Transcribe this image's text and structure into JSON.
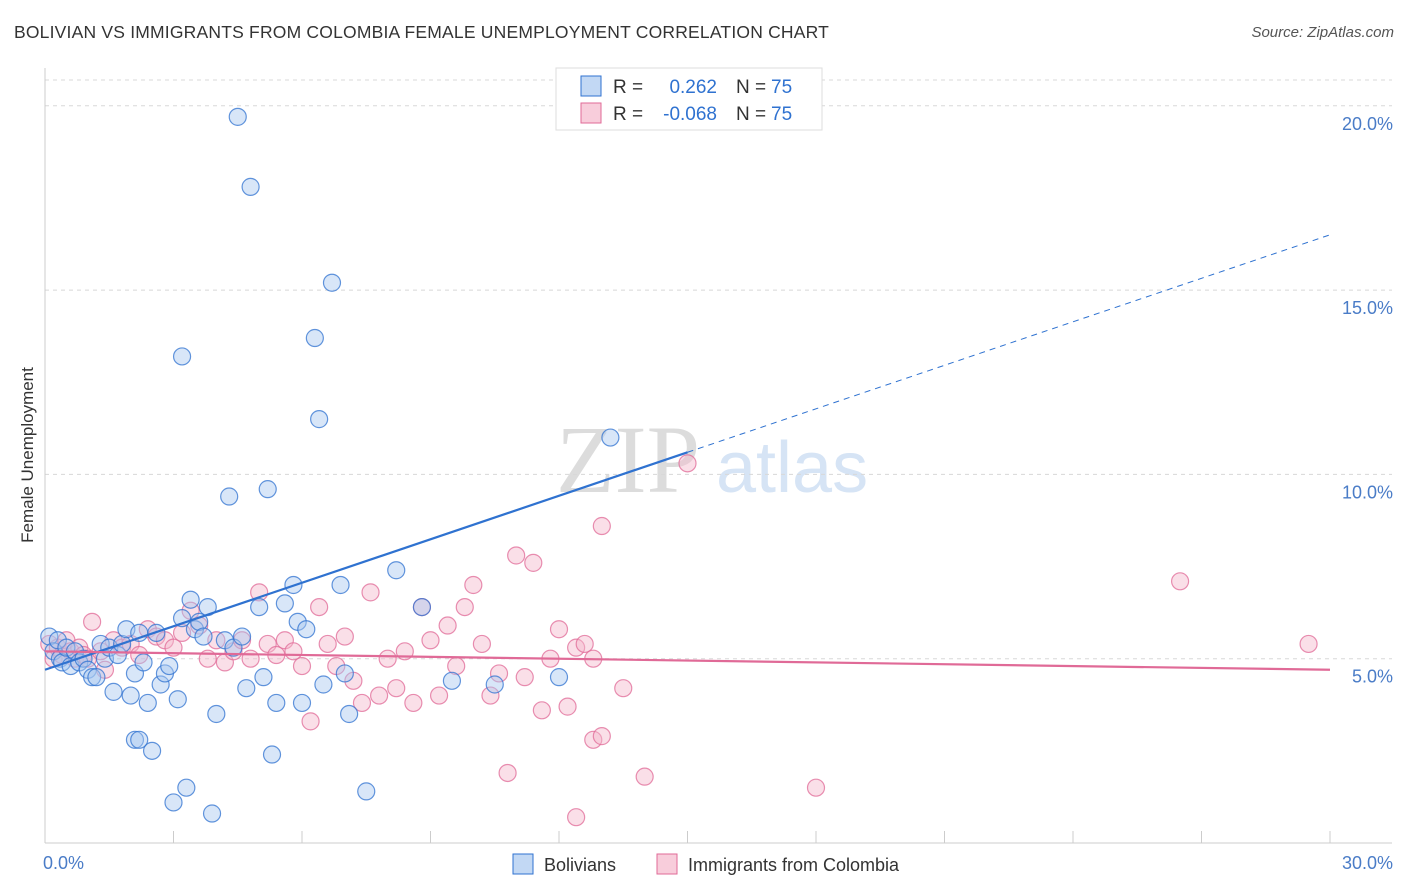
{
  "title": "BOLIVIAN VS IMMIGRANTS FROM COLOMBIA FEMALE UNEMPLOYMENT CORRELATION CHART",
  "source": "Source: ZipAtlas.com",
  "watermark": {
    "zip": "ZIP",
    "atlas": "atlas"
  },
  "colors": {
    "blue": "#2f72d0",
    "blue_fill": "#a8c8f0",
    "pink": "#e06a97",
    "pink_fill": "#f5b8cc",
    "grid": "#d8d8d8",
    "tick_label": "#4a7cc7"
  },
  "legend_top": {
    "rows": [
      {
        "r_label": "R =",
        "r_value": "0.262",
        "n_label": "N =",
        "n_value": "75",
        "color": "blue"
      },
      {
        "r_label": "R =",
        "r_value": "-0.068",
        "n_label": "N =",
        "n_value": "75",
        "color": "pink"
      }
    ]
  },
  "legend_bottom": [
    {
      "label": "Bolivians",
      "color": "blue"
    },
    {
      "label": "Immigrants from Colombia",
      "color": "pink"
    }
  ],
  "chart_data": {
    "type": "scatter",
    "ylabel": "Female Unemployment",
    "xlabel": "",
    "xlim": [
      0,
      30
    ],
    "ylim": [
      0,
      20.7
    ],
    "x_tick_labels": [
      {
        "value": 0,
        "label": "0.0%"
      },
      {
        "value": 30,
        "label": "30.0%"
      }
    ],
    "y_tick_labels": [
      {
        "value": 5,
        "label": "5.0%"
      },
      {
        "value": 10,
        "label": "10.0%"
      },
      {
        "value": 15,
        "label": "15.0%"
      },
      {
        "value": 20,
        "label": "20.0%"
      }
    ],
    "x_minor_ticks": [
      3,
      6,
      9,
      12,
      15,
      18,
      21,
      24,
      27,
      30
    ],
    "grid": true,
    "legend_position": "top-center",
    "series": [
      {
        "name": "Bolivians",
        "color": "blue",
        "trend": {
          "x0": 0,
          "y0": 4.7,
          "x1": 15,
          "y1": 10.6,
          "dash_x1": 30,
          "dash_y1": 16.5
        },
        "points": [
          [
            0.1,
            5.6
          ],
          [
            0.2,
            5.2
          ],
          [
            0.3,
            5.5
          ],
          [
            0.35,
            5.0
          ],
          [
            0.4,
            4.9
          ],
          [
            0.5,
            5.3
          ],
          [
            0.6,
            4.8
          ],
          [
            0.7,
            5.2
          ],
          [
            0.8,
            4.9
          ],
          [
            0.9,
            5.0
          ],
          [
            1.0,
            4.7
          ],
          [
            1.1,
            4.5
          ],
          [
            1.2,
            4.5
          ],
          [
            1.3,
            5.4
          ],
          [
            1.4,
            5.0
          ],
          [
            1.5,
            5.3
          ],
          [
            1.6,
            4.1
          ],
          [
            1.7,
            5.1
          ],
          [
            1.8,
            5.4
          ],
          [
            1.9,
            5.8
          ],
          [
            2.0,
            4.0
          ],
          [
            2.1,
            4.6
          ],
          [
            2.2,
            5.7
          ],
          [
            2.3,
            4.9
          ],
          [
            2.4,
            3.8
          ],
          [
            2.5,
            2.5
          ],
          [
            2.6,
            5.7
          ],
          [
            2.7,
            4.3
          ],
          [
            2.8,
            4.6
          ],
          [
            2.9,
            4.8
          ],
          [
            3.0,
            1.1
          ],
          [
            3.1,
            3.9
          ],
          [
            3.2,
            6.1
          ],
          [
            3.3,
            1.5
          ],
          [
            3.4,
            6.6
          ],
          [
            3.5,
            5.8
          ],
          [
            3.6,
            6.0
          ],
          [
            3.7,
            5.6
          ],
          [
            3.8,
            6.4
          ],
          [
            3.9,
            0.8
          ],
          [
            4.0,
            3.5
          ],
          [
            4.2,
            5.5
          ],
          [
            4.3,
            9.4
          ],
          [
            4.4,
            5.3
          ],
          [
            4.6,
            5.6
          ],
          [
            4.7,
            4.2
          ],
          [
            4.8,
            17.8
          ],
          [
            5.0,
            6.4
          ],
          [
            5.1,
            4.5
          ],
          [
            5.2,
            9.6
          ],
          [
            5.3,
            2.4
          ],
          [
            5.4,
            3.8
          ],
          [
            5.6,
            6.5
          ],
          [
            5.8,
            7.0
          ],
          [
            5.9,
            6.0
          ],
          [
            6.0,
            3.8
          ],
          [
            6.1,
            5.8
          ],
          [
            6.3,
            13.7
          ],
          [
            6.4,
            11.5
          ],
          [
            6.5,
            4.3
          ],
          [
            6.7,
            15.2
          ],
          [
            6.9,
            7.0
          ],
          [
            7.0,
            4.6
          ],
          [
            7.1,
            3.5
          ],
          [
            7.5,
            1.4
          ],
          [
            8.2,
            7.4
          ],
          [
            8.8,
            6.4
          ],
          [
            9.5,
            4.4
          ],
          [
            10.5,
            4.3
          ],
          [
            12.0,
            4.5
          ],
          [
            13.2,
            11.0
          ],
          [
            3.2,
            13.2
          ],
          [
            4.5,
            19.7
          ],
          [
            2.1,
            2.8
          ],
          [
            2.2,
            2.8
          ]
        ]
      },
      {
        "name": "Immigrants from Colombia",
        "color": "pink",
        "trend": {
          "x0": 0,
          "y0": 5.2,
          "x1": 30,
          "y1": 4.7
        },
        "points": [
          [
            0.1,
            5.4
          ],
          [
            0.2,
            5.0
          ],
          [
            0.3,
            5.3
          ],
          [
            0.4,
            5.1
          ],
          [
            0.5,
            5.5
          ],
          [
            0.6,
            5.2
          ],
          [
            0.7,
            5.0
          ],
          [
            0.8,
            5.3
          ],
          [
            0.9,
            5.1
          ],
          [
            1.0,
            5.0
          ],
          [
            1.1,
            6.0
          ],
          [
            1.3,
            5.2
          ],
          [
            1.4,
            4.7
          ],
          [
            1.6,
            5.5
          ],
          [
            1.8,
            5.3
          ],
          [
            2.0,
            5.4
          ],
          [
            2.2,
            5.1
          ],
          [
            2.4,
            5.8
          ],
          [
            2.6,
            5.6
          ],
          [
            2.8,
            5.5
          ],
          [
            3.0,
            5.3
          ],
          [
            3.2,
            5.7
          ],
          [
            3.4,
            6.3
          ],
          [
            3.6,
            5.9
          ],
          [
            3.8,
            5.0
          ],
          [
            4.0,
            5.5
          ],
          [
            4.2,
            4.9
          ],
          [
            4.4,
            5.2
          ],
          [
            4.6,
            5.5
          ],
          [
            4.8,
            5.0
          ],
          [
            5.0,
            6.8
          ],
          [
            5.2,
            5.4
          ],
          [
            5.4,
            5.1
          ],
          [
            5.6,
            5.5
          ],
          [
            5.8,
            5.2
          ],
          [
            6.0,
            4.8
          ],
          [
            6.2,
            3.3
          ],
          [
            6.4,
            6.4
          ],
          [
            6.6,
            5.4
          ],
          [
            6.8,
            4.8
          ],
          [
            7.0,
            5.6
          ],
          [
            7.2,
            4.4
          ],
          [
            7.4,
            3.8
          ],
          [
            7.6,
            6.8
          ],
          [
            7.8,
            4.0
          ],
          [
            8.0,
            5.0
          ],
          [
            8.2,
            4.2
          ],
          [
            8.4,
            5.2
          ],
          [
            8.6,
            3.8
          ],
          [
            8.8,
            6.4
          ],
          [
            9.0,
            5.5
          ],
          [
            9.2,
            4.0
          ],
          [
            9.4,
            5.9
          ],
          [
            9.6,
            4.8
          ],
          [
            9.8,
            6.4
          ],
          [
            10.0,
            7.0
          ],
          [
            10.2,
            5.4
          ],
          [
            10.4,
            4.0
          ],
          [
            10.6,
            4.6
          ],
          [
            10.8,
            1.9
          ],
          [
            11.0,
            7.8
          ],
          [
            11.2,
            4.5
          ],
          [
            11.4,
            7.6
          ],
          [
            11.6,
            3.6
          ],
          [
            11.8,
            5.0
          ],
          [
            12.0,
            5.8
          ],
          [
            12.2,
            3.7
          ],
          [
            12.4,
            5.3
          ],
          [
            12.6,
            5.4
          ],
          [
            12.8,
            2.8
          ],
          [
            13.0,
            8.6
          ],
          [
            13.5,
            4.2
          ],
          [
            14.0,
            1.8
          ],
          [
            15.0,
            10.3
          ],
          [
            18.0,
            1.5
          ]
        ],
        "extra_points": [
          [
            26.5,
            7.1
          ],
          [
            29.5,
            5.4
          ],
          [
            13.0,
            2.9
          ],
          [
            12.8,
            5.0
          ],
          [
            12.4,
            0.7
          ]
        ]
      }
    ]
  }
}
